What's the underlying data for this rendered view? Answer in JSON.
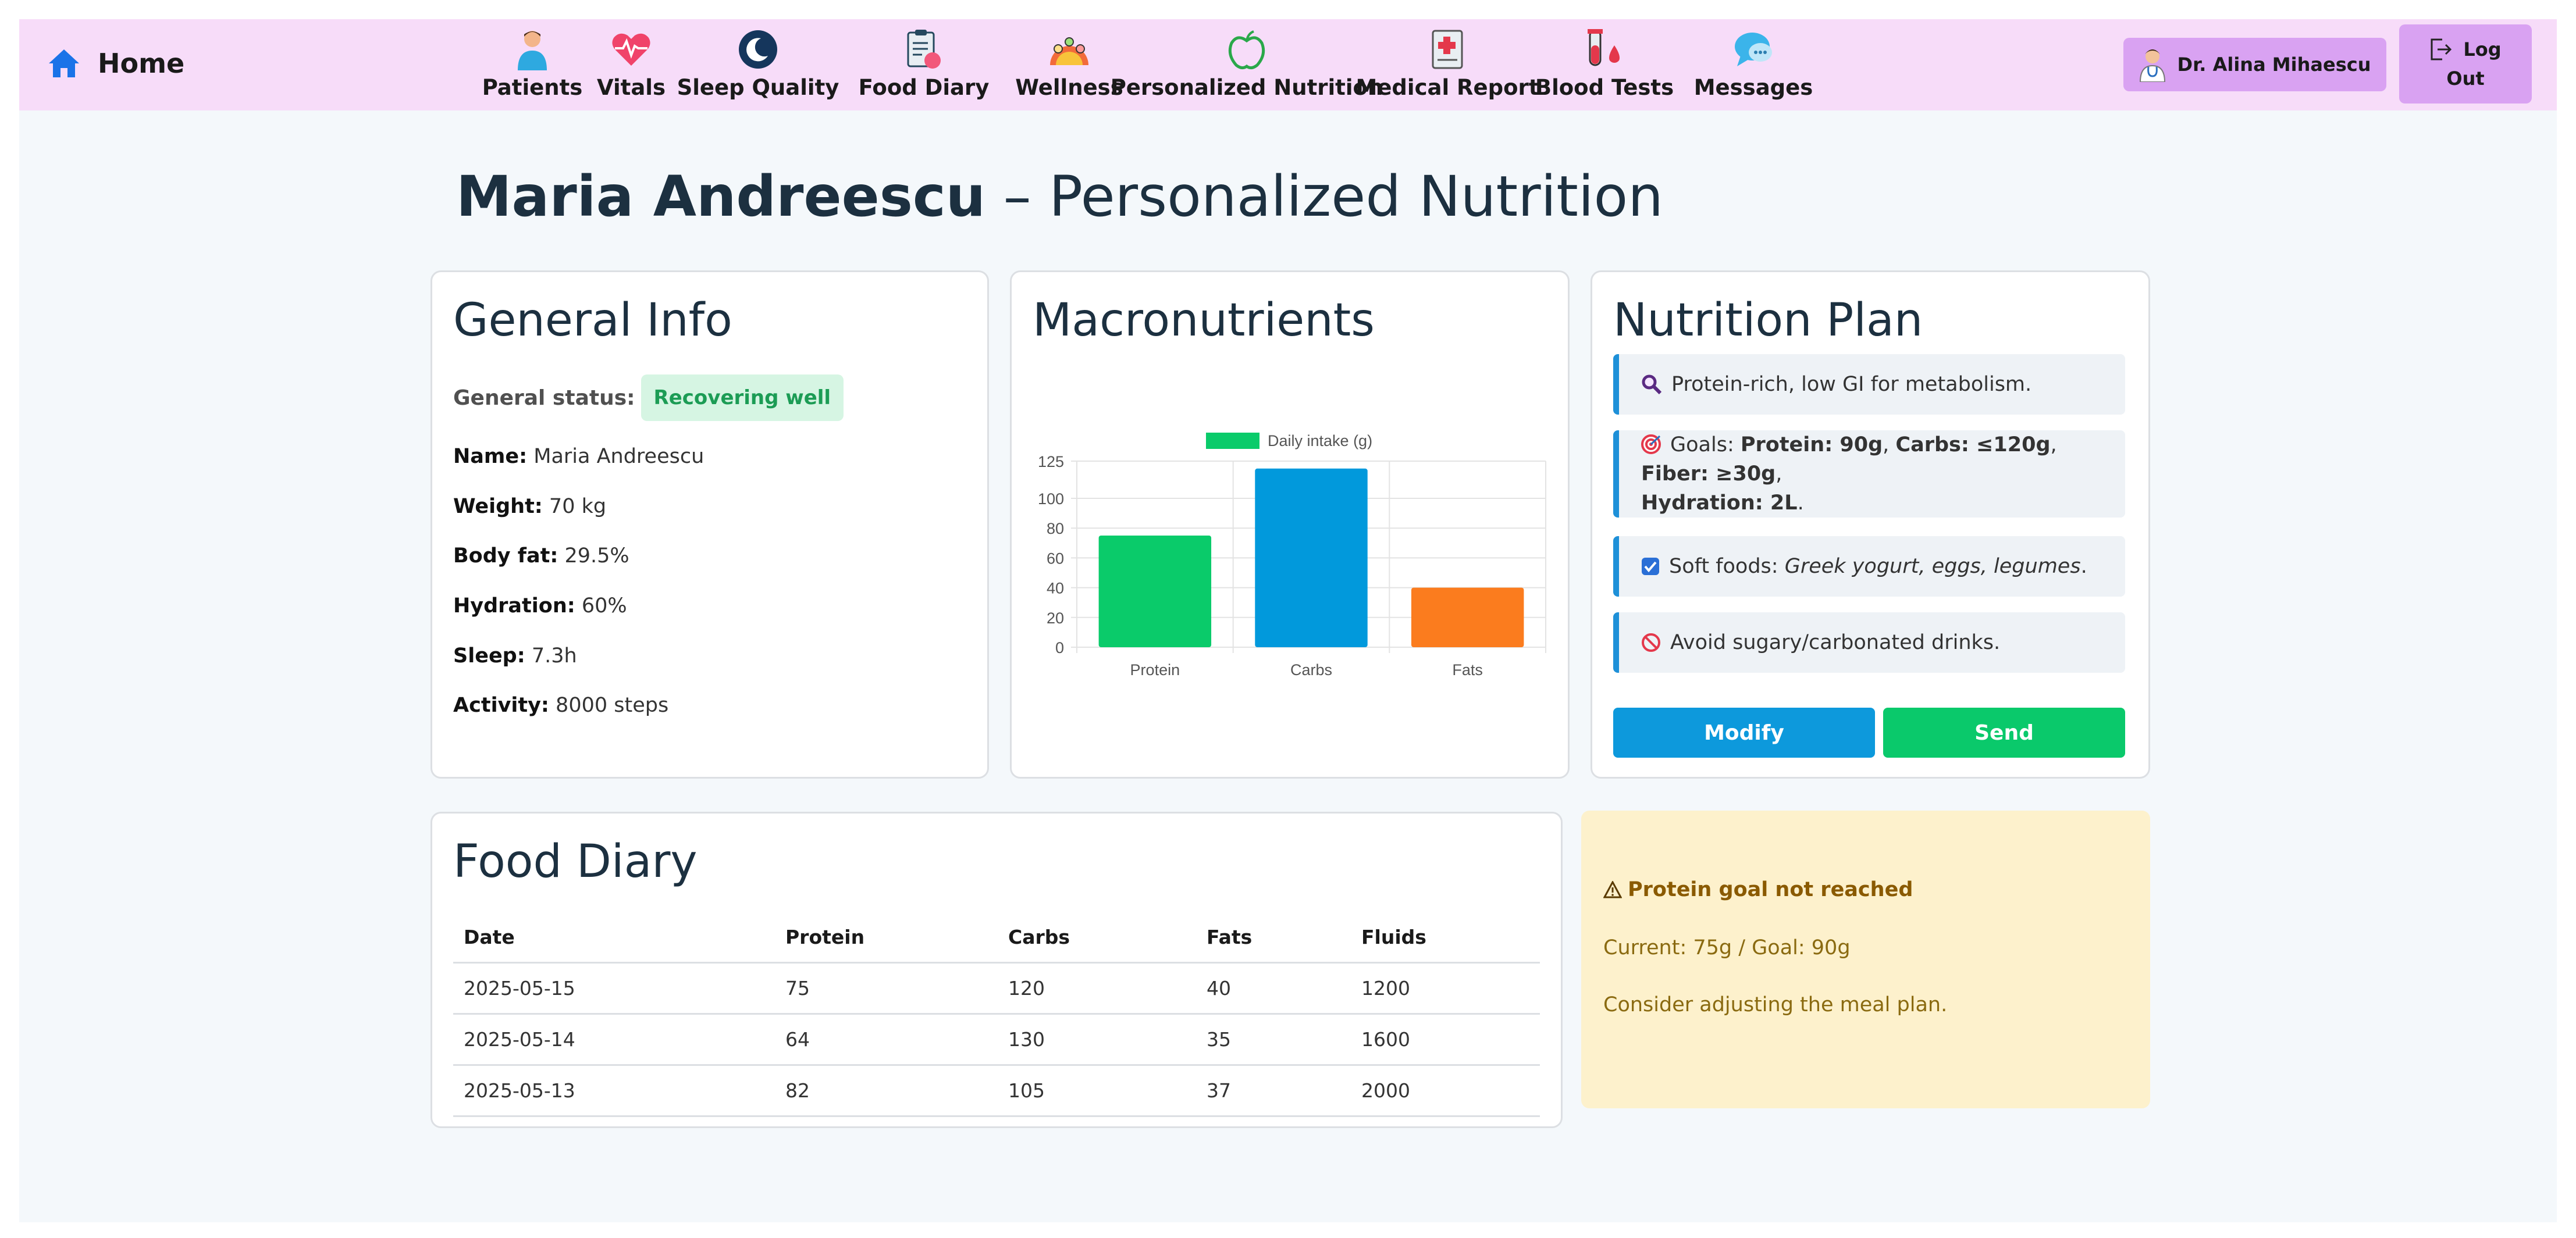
{
  "nav": {
    "home_label": "Home",
    "items": [
      {
        "label": "Patients",
        "icon": "patients-icon"
      },
      {
        "label": "Vitals",
        "icon": "heart-pulse-icon"
      },
      {
        "label": "Sleep Quality",
        "icon": "moon-icon"
      },
      {
        "label": "Food Diary",
        "icon": "clipboard-food-icon"
      },
      {
        "label": "Wellness",
        "icon": "mood-faces-icon"
      },
      {
        "label": "Personalized Nutrition",
        "icon": "apple-icon"
      },
      {
        "label": "Medical Report",
        "icon": "medical-report-icon"
      },
      {
        "label": "Blood Tests",
        "icon": "blood-test-icon"
      },
      {
        "label": "Messages",
        "icon": "chat-bubble-icon"
      }
    ],
    "doctor_name": "Dr. Alina Mihaescu",
    "logout_line1": "Log",
    "logout_line2": "Out"
  },
  "page": {
    "patient_name": "Maria Andreescu",
    "title_rest": " – Personalized Nutrition"
  },
  "general_info": {
    "title": "General Info",
    "status_label": "General status:",
    "status_value": "Recovering well",
    "fields": [
      {
        "label": "Name:",
        "value": " Maria Andreescu"
      },
      {
        "label": "Weight:",
        "value": " 70 kg"
      },
      {
        "label": "Body fat:",
        "value": " 29.5%"
      },
      {
        "label": "Hydration:",
        "value": " 60%"
      },
      {
        "label": "Sleep:",
        "value": " 7.3h"
      },
      {
        "label": "Activity:",
        "value": " 8000 steps"
      }
    ]
  },
  "macros": {
    "title": "Macronutrients"
  },
  "chart_data": {
    "type": "bar",
    "categories": [
      "Protein",
      "Carbs",
      "Fats"
    ],
    "series": [
      {
        "name": "Daily intake (g)",
        "values": [
          75,
          120,
          40
        ]
      }
    ],
    "bar_colors": [
      "#0acb6a",
      "#0199dc",
      "#fb7c1e"
    ],
    "legend_color": "#0acb6a",
    "ylim": [
      0,
      125
    ],
    "yticks": [
      0,
      20,
      40,
      60,
      80,
      100,
      125
    ],
    "legend_position": "top",
    "grid": true
  },
  "plan": {
    "title": "Nutrition Plan",
    "item1_icon": "magnifier-icon",
    "item1_text": "Protein-rich, low GI for metabolism.",
    "item2_icon": "target-icon",
    "item2_prefix": "Goals: ",
    "item2_protein": "Protein: 90g",
    "item2_sep1": ", ",
    "item2_carbs": "Carbs: ≤120g",
    "item2_sep2": ", ",
    "item2_fiber": "Fiber: ≥30g",
    "item2_sep3": ",",
    "item2_hydration": "Hydration: 2L",
    "item2_end": ".",
    "item3_icon": "checkbox-icon",
    "item3_prefix": "Soft foods: ",
    "item3_foods": "Greek yogurt, eggs, legumes",
    "item3_end": ".",
    "item4_icon": "prohibited-icon",
    "item4_text": "Avoid sugary/carbonated drinks.",
    "modify_label": "Modify",
    "send_label": "Send",
    "accent_blue": "#0d99dc",
    "accent_green": "#0ac96b"
  },
  "diary": {
    "title": "Food Diary",
    "columns": [
      "Date",
      "Protein",
      "Carbs",
      "Fats",
      "Fluids"
    ],
    "rows": [
      [
        "2025-05-15",
        "75",
        "120",
        "40",
        "1200"
      ],
      [
        "2025-05-14",
        "64",
        "130",
        "35",
        "1600"
      ],
      [
        "2025-05-13",
        "82",
        "105",
        "37",
        "2000"
      ]
    ]
  },
  "alert": {
    "icon": "warning-icon",
    "title": "Protein goal not reached",
    "current": "Current: 75g / Goal: 90g",
    "advice": "Consider adjusting the meal plan."
  }
}
